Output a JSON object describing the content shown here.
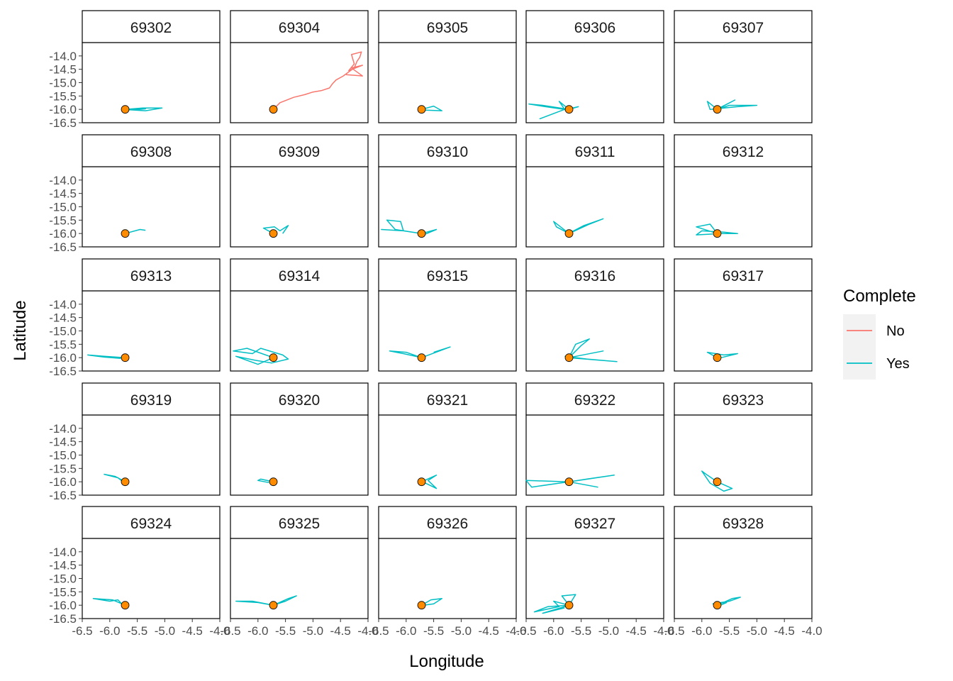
{
  "chart_data": {
    "type": "line",
    "facet_by": "id",
    "xlabel": "Longitude",
    "ylabel": "Latitude",
    "xlim": [
      -6.5,
      -4.0
    ],
    "ylim": [
      -16.5,
      -13.5
    ],
    "x_ticks": [
      "-6.5",
      "-6.0",
      "-5.5",
      "-5.0",
      "-4.5",
      "-4.0"
    ],
    "y_ticks": [
      "-14.0",
      "-14.5",
      "-15.0",
      "-15.5",
      "-16.0",
      "-16.5"
    ],
    "y_tick_values": [
      -14.0,
      -14.5,
      -15.0,
      -15.5,
      -16.0,
      -16.5
    ],
    "origin": {
      "x": -5.72,
      "y": -16.0,
      "fill": "#FF8C00"
    },
    "legend": {
      "title": "Complete",
      "position": "right",
      "entries": [
        {
          "label": "No",
          "color": "#F8766D"
        },
        {
          "label": "Yes",
          "color": "#00BFC4"
        }
      ]
    },
    "panels": [
      {
        "id": "69302",
        "complete": "Yes",
        "path": [
          [
            -5.72,
            -16.0
          ],
          [
            -5.4,
            -15.95
          ],
          [
            -5.05,
            -15.95
          ],
          [
            -5.35,
            -16.05
          ],
          [
            -5.75,
            -16.0
          ],
          [
            -5.35,
            -15.98
          ],
          [
            -5.6,
            -16.03
          ]
        ]
      },
      {
        "id": "69304",
        "complete": "No",
        "path": [
          [
            -5.72,
            -16.0
          ],
          [
            -5.6,
            -15.75
          ],
          [
            -5.35,
            -15.55
          ],
          [
            -5.15,
            -15.45
          ],
          [
            -5.0,
            -15.35
          ],
          [
            -4.85,
            -15.3
          ],
          [
            -4.7,
            -15.2
          ],
          [
            -4.65,
            -15.05
          ],
          [
            -4.58,
            -14.9
          ],
          [
            -4.45,
            -14.75
          ],
          [
            -4.35,
            -14.6
          ],
          [
            -4.25,
            -14.45
          ],
          [
            -4.2,
            -14.2
          ],
          [
            -4.15,
            -14.05
          ],
          [
            -4.12,
            -13.85
          ],
          [
            -4.3,
            -13.95
          ],
          [
            -4.25,
            -14.3
          ],
          [
            -4.35,
            -14.55
          ],
          [
            -4.1,
            -14.35
          ],
          [
            -4.3,
            -14.45
          ],
          [
            -4.1,
            -14.75
          ],
          [
            -4.4,
            -14.7
          ]
        ]
      },
      {
        "id": "69305",
        "complete": "Yes",
        "path": [
          [
            -5.72,
            -16.0
          ],
          [
            -5.5,
            -15.88
          ],
          [
            -5.35,
            -16.05
          ],
          [
            -5.65,
            -16.03
          ]
        ]
      },
      {
        "id": "69306",
        "complete": "Yes",
        "path": [
          [
            -5.72,
            -16.0
          ],
          [
            -6.2,
            -15.85
          ],
          [
            -6.45,
            -15.8
          ],
          [
            -6.15,
            -15.9
          ],
          [
            -5.8,
            -16.0
          ],
          [
            -6.25,
            -16.35
          ],
          [
            -5.8,
            -16.0
          ],
          [
            -5.9,
            -15.7
          ],
          [
            -5.72,
            -16.0
          ],
          [
            -5.55,
            -15.9
          ],
          [
            -5.8,
            -16.02
          ]
        ]
      },
      {
        "id": "69307",
        "complete": "Yes",
        "path": [
          [
            -5.72,
            -16.0
          ],
          [
            -5.5,
            -15.85
          ],
          [
            -5.0,
            -15.85
          ],
          [
            -5.35,
            -15.9
          ],
          [
            -5.85,
            -16.0
          ],
          [
            -5.9,
            -15.7
          ],
          [
            -5.72,
            -16.0
          ],
          [
            -5.4,
            -15.65
          ],
          [
            -5.75,
            -16.02
          ]
        ]
      },
      {
        "id": "69308",
        "complete": "Yes",
        "path": [
          [
            -5.72,
            -16.0
          ],
          [
            -5.45,
            -15.85
          ],
          [
            -5.35,
            -15.88
          ]
        ]
      },
      {
        "id": "69309",
        "complete": "Yes",
        "path": [
          [
            -5.72,
            -16.0
          ],
          [
            -5.9,
            -15.8
          ],
          [
            -5.7,
            -15.75
          ],
          [
            -5.6,
            -15.9
          ],
          [
            -5.45,
            -15.7
          ],
          [
            -5.55,
            -16.0
          ]
        ]
      },
      {
        "id": "69310",
        "complete": "Yes",
        "path": [
          [
            -5.72,
            -16.0
          ],
          [
            -6.2,
            -15.85
          ],
          [
            -6.35,
            -15.5
          ],
          [
            -6.1,
            -15.55
          ],
          [
            -6.05,
            -15.9
          ],
          [
            -6.45,
            -15.85
          ],
          [
            -6.05,
            -15.9
          ],
          [
            -5.72,
            -16.0
          ],
          [
            -5.45,
            -15.85
          ],
          [
            -5.65,
            -16.02
          ]
        ]
      },
      {
        "id": "69311",
        "complete": "Yes",
        "path": [
          [
            -5.72,
            -16.0
          ],
          [
            -6.0,
            -15.55
          ],
          [
            -5.95,
            -15.75
          ],
          [
            -5.72,
            -16.0
          ],
          [
            -5.35,
            -15.65
          ],
          [
            -5.1,
            -15.45
          ],
          [
            -5.45,
            -15.7
          ],
          [
            -5.75,
            -16.02
          ]
        ]
      },
      {
        "id": "69312",
        "complete": "Yes",
        "path": [
          [
            -5.72,
            -16.0
          ],
          [
            -6.1,
            -15.75
          ],
          [
            -5.85,
            -15.65
          ],
          [
            -5.72,
            -16.0
          ],
          [
            -5.35,
            -16.0
          ],
          [
            -5.6,
            -15.95
          ],
          [
            -6.0,
            -15.9
          ],
          [
            -6.1,
            -16.05
          ],
          [
            -5.8,
            -16.02
          ]
        ]
      },
      {
        "id": "69313",
        "complete": "Yes",
        "path": [
          [
            -5.72,
            -16.0
          ],
          [
            -6.1,
            -15.95
          ],
          [
            -6.4,
            -15.9
          ],
          [
            -6.1,
            -15.98
          ],
          [
            -5.8,
            -16.03
          ]
        ]
      },
      {
        "id": "69314",
        "complete": "Yes",
        "path": [
          [
            -5.72,
            -16.0
          ],
          [
            -6.2,
            -15.65
          ],
          [
            -6.45,
            -15.75
          ],
          [
            -6.1,
            -15.85
          ],
          [
            -5.95,
            -15.65
          ],
          [
            -5.55,
            -15.9
          ],
          [
            -5.45,
            -16.05
          ],
          [
            -5.75,
            -16.2
          ],
          [
            -6.05,
            -16.1
          ],
          [
            -6.4,
            -15.95
          ],
          [
            -6.0,
            -16.25
          ],
          [
            -5.72,
            -16.0
          ]
        ]
      },
      {
        "id": "69315",
        "complete": "Yes",
        "path": [
          [
            -5.72,
            -16.0
          ],
          [
            -6.05,
            -15.85
          ],
          [
            -6.3,
            -15.75
          ],
          [
            -6.0,
            -15.8
          ],
          [
            -5.72,
            -16.0
          ],
          [
            -5.2,
            -15.6
          ],
          [
            -5.5,
            -15.8
          ]
        ]
      },
      {
        "id": "69316",
        "complete": "Yes",
        "path": [
          [
            -5.72,
            -16.0
          ],
          [
            -5.6,
            -15.5
          ],
          [
            -5.35,
            -15.3
          ],
          [
            -5.5,
            -15.55
          ],
          [
            -5.72,
            -16.0
          ],
          [
            -5.1,
            -15.75
          ],
          [
            -5.72,
            -16.0
          ],
          [
            -4.85,
            -16.15
          ],
          [
            -5.4,
            -16.05
          ],
          [
            -5.8,
            -15.95
          ]
        ]
      },
      {
        "id": "69317",
        "complete": "Yes",
        "path": [
          [
            -5.72,
            -16.0
          ],
          [
            -5.9,
            -15.8
          ],
          [
            -5.6,
            -15.9
          ],
          [
            -5.35,
            -15.85
          ],
          [
            -5.65,
            -16.0
          ]
        ]
      },
      {
        "id": "69319",
        "complete": "Yes",
        "path": [
          [
            -5.72,
            -16.0
          ],
          [
            -5.9,
            -15.8
          ],
          [
            -6.1,
            -15.72
          ],
          [
            -5.85,
            -15.85
          ],
          [
            -5.75,
            -16.02
          ]
        ]
      },
      {
        "id": "69320",
        "complete": "Yes",
        "path": [
          [
            -5.72,
            -16.0
          ],
          [
            -5.95,
            -15.9
          ],
          [
            -6.0,
            -15.95
          ],
          [
            -5.8,
            -16.03
          ]
        ]
      },
      {
        "id": "69321",
        "complete": "Yes",
        "path": [
          [
            -5.72,
            -16.0
          ],
          [
            -5.45,
            -15.75
          ],
          [
            -5.6,
            -15.95
          ],
          [
            -5.45,
            -16.25
          ],
          [
            -5.65,
            -16.05
          ]
        ]
      },
      {
        "id": "69322",
        "complete": "Yes",
        "path": [
          [
            -5.72,
            -16.0
          ],
          [
            -6.5,
            -15.95
          ],
          [
            -6.4,
            -16.2
          ],
          [
            -5.9,
            -16.05
          ],
          [
            -5.72,
            -16.0
          ],
          [
            -5.2,
            -16.2
          ],
          [
            -5.72,
            -16.0
          ],
          [
            -4.9,
            -15.75
          ],
          [
            -5.4,
            -15.9
          ],
          [
            -5.72,
            -16.0
          ]
        ]
      },
      {
        "id": "69323",
        "complete": "Yes",
        "path": [
          [
            -5.72,
            -16.0
          ],
          [
            -5.9,
            -15.75
          ],
          [
            -6.0,
            -15.6
          ],
          [
            -5.85,
            -16.05
          ],
          [
            -5.6,
            -16.35
          ],
          [
            -5.45,
            -16.25
          ],
          [
            -5.72,
            -16.0
          ]
        ]
      },
      {
        "id": "69324",
        "complete": "Yes",
        "path": [
          [
            -5.72,
            -16.0
          ],
          [
            -5.95,
            -15.8
          ],
          [
            -6.3,
            -15.75
          ],
          [
            -6.0,
            -15.85
          ],
          [
            -5.85,
            -15.8
          ],
          [
            -5.75,
            -16.02
          ]
        ]
      },
      {
        "id": "69325",
        "complete": "Yes",
        "path": [
          [
            -5.72,
            -16.0
          ],
          [
            -6.1,
            -15.85
          ],
          [
            -6.4,
            -15.85
          ],
          [
            -6.0,
            -15.9
          ],
          [
            -5.72,
            -16.0
          ],
          [
            -5.45,
            -15.75
          ],
          [
            -5.3,
            -15.65
          ],
          [
            -5.5,
            -15.85
          ],
          [
            -5.72,
            -16.0
          ]
        ]
      },
      {
        "id": "69326",
        "complete": "Yes",
        "path": [
          [
            -5.72,
            -16.0
          ],
          [
            -5.55,
            -15.8
          ],
          [
            -5.35,
            -15.75
          ],
          [
            -5.5,
            -15.95
          ],
          [
            -5.75,
            -16.02
          ]
        ]
      },
      {
        "id": "69327",
        "complete": "Yes",
        "path": [
          [
            -5.72,
            -16.0
          ],
          [
            -6.1,
            -16.05
          ],
          [
            -6.35,
            -16.25
          ],
          [
            -5.9,
            -16.05
          ],
          [
            -6.0,
            -15.85
          ],
          [
            -5.72,
            -16.0
          ],
          [
            -5.85,
            -15.65
          ],
          [
            -5.6,
            -15.6
          ],
          [
            -5.72,
            -16.0
          ],
          [
            -6.2,
            -16.3
          ],
          [
            -5.8,
            -16.1
          ]
        ]
      },
      {
        "id": "69328",
        "complete": "Yes",
        "path": [
          [
            -5.72,
            -16.0
          ],
          [
            -5.45,
            -15.75
          ],
          [
            -5.3,
            -15.7
          ],
          [
            -5.5,
            -15.85
          ],
          [
            -5.8,
            -15.95
          ],
          [
            -5.55,
            -15.9
          ],
          [
            -5.72,
            -16.05
          ]
        ]
      }
    ]
  }
}
